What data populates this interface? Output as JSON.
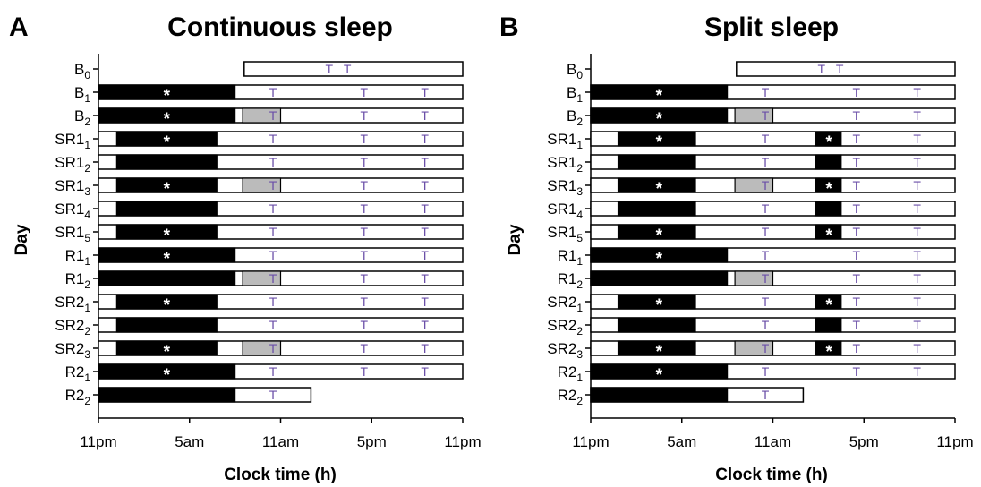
{
  "colors": {
    "sleep": "#000000",
    "nap": "#bbbbbb",
    "wake": "#ffffff",
    "test_marker": "#6b4fa8",
    "star": "#ffffff"
  },
  "axis": {
    "x_tick_labels": [
      "11pm",
      "5am",
      "11am",
      "5pm",
      "11pm"
    ],
    "x_tick_hours": [
      0,
      6,
      12,
      18,
      24
    ],
    "xlabel": "Clock time (h)",
    "ylabel": "Day"
  },
  "marker_glyphs": {
    "test": "T",
    "star": "*"
  },
  "panels": [
    {
      "letter": "A",
      "title": "Continuous sleep",
      "days": [
        {
          "base": "B",
          "sub": "0",
          "bar_start_h": 9.6,
          "bar_end_h": 24,
          "sleep": [],
          "nap": [],
          "stars": [],
          "tests": [
            15.2,
            16.4
          ]
        },
        {
          "base": "B",
          "sub": "1",
          "bar_start_h": 0,
          "bar_end_h": 24,
          "sleep": [
            [
              0,
              9
            ]
          ],
          "nap": [],
          "stars": [
            4.5
          ],
          "tests": [
            11.5,
            17.5,
            21.5
          ]
        },
        {
          "base": "B",
          "sub": "2",
          "bar_start_h": 0,
          "bar_end_h": 24,
          "sleep": [
            [
              0,
              9
            ]
          ],
          "nap": [
            [
              9.5,
              12
            ]
          ],
          "stars": [
            4.5
          ],
          "tests": [
            11.5,
            17.5,
            21.5
          ]
        },
        {
          "base": "SR1",
          "sub": "1",
          "bar_start_h": 0,
          "bar_end_h": 24,
          "sleep": [
            [
              1.2,
              7.8
            ]
          ],
          "nap": [],
          "stars": [
            4.5
          ],
          "tests": [
            11.5,
            17.5,
            21.5
          ]
        },
        {
          "base": "SR1",
          "sub": "2",
          "bar_start_h": 0,
          "bar_end_h": 24,
          "sleep": [
            [
              1.2,
              7.8
            ]
          ],
          "nap": [],
          "stars": [],
          "tests": [
            11.5,
            17.5,
            21.5
          ]
        },
        {
          "base": "SR1",
          "sub": "3",
          "bar_start_h": 0,
          "bar_end_h": 24,
          "sleep": [
            [
              1.2,
              7.8
            ]
          ],
          "nap": [
            [
              9.5,
              12
            ]
          ],
          "stars": [
            4.5
          ],
          "tests": [
            11.5,
            17.5,
            21.5
          ]
        },
        {
          "base": "SR1",
          "sub": "4",
          "bar_start_h": 0,
          "bar_end_h": 24,
          "sleep": [
            [
              1.2,
              7.8
            ]
          ],
          "nap": [],
          "stars": [],
          "tests": [
            11.5,
            17.5,
            21.5
          ]
        },
        {
          "base": "SR1",
          "sub": "5",
          "bar_start_h": 0,
          "bar_end_h": 24,
          "sleep": [
            [
              1.2,
              7.8
            ]
          ],
          "nap": [],
          "stars": [
            4.5
          ],
          "tests": [
            11.5,
            17.5,
            21.5
          ]
        },
        {
          "base": "R1",
          "sub": "1",
          "bar_start_h": 0,
          "bar_end_h": 24,
          "sleep": [
            [
              0,
              9
            ]
          ],
          "nap": [],
          "stars": [
            4.5
          ],
          "tests": [
            11.5,
            17.5,
            21.5
          ]
        },
        {
          "base": "R1",
          "sub": "2",
          "bar_start_h": 0,
          "bar_end_h": 24,
          "sleep": [
            [
              0,
              9
            ]
          ],
          "nap": [
            [
              9.5,
              12
            ]
          ],
          "stars": [],
          "tests": [
            11.5,
            17.5,
            21.5
          ]
        },
        {
          "base": "SR2",
          "sub": "1",
          "bar_start_h": 0,
          "bar_end_h": 24,
          "sleep": [
            [
              1.2,
              7.8
            ]
          ],
          "nap": [],
          "stars": [
            4.5
          ],
          "tests": [
            11.5,
            17.5,
            21.5
          ]
        },
        {
          "base": "SR2",
          "sub": "2",
          "bar_start_h": 0,
          "bar_end_h": 24,
          "sleep": [
            [
              1.2,
              7.8
            ]
          ],
          "nap": [],
          "stars": [],
          "tests": [
            11.5,
            17.5,
            21.5
          ]
        },
        {
          "base": "SR2",
          "sub": "3",
          "bar_start_h": 0,
          "bar_end_h": 24,
          "sleep": [
            [
              1.2,
              7.8
            ]
          ],
          "nap": [
            [
              9.5,
              12
            ]
          ],
          "stars": [
            4.5
          ],
          "tests": [
            11.5,
            17.5,
            21.5
          ]
        },
        {
          "base": "R2",
          "sub": "1",
          "bar_start_h": 0,
          "bar_end_h": 24,
          "sleep": [
            [
              0,
              9
            ]
          ],
          "nap": [],
          "stars": [
            4.5
          ],
          "tests": [
            11.5,
            17.5,
            21.5
          ]
        },
        {
          "base": "R2",
          "sub": "2",
          "bar_start_h": 0,
          "bar_end_h": 14,
          "sleep": [
            [
              0,
              9
            ]
          ],
          "nap": [],
          "stars": [],
          "tests": [
            11.5
          ]
        }
      ]
    },
    {
      "letter": "B",
      "title": "Split sleep",
      "days": [
        {
          "base": "B",
          "sub": "0",
          "bar_start_h": 9.6,
          "bar_end_h": 24,
          "sleep": [],
          "nap": [],
          "stars": [],
          "tests": [
            15.2,
            16.4
          ]
        },
        {
          "base": "B",
          "sub": "1",
          "bar_start_h": 0,
          "bar_end_h": 24,
          "sleep": [
            [
              0,
              9
            ]
          ],
          "nap": [],
          "stars": [
            4.5
          ],
          "tests": [
            11.5,
            17.5,
            21.5
          ]
        },
        {
          "base": "B",
          "sub": "2",
          "bar_start_h": 0,
          "bar_end_h": 24,
          "sleep": [
            [
              0,
              9
            ]
          ],
          "nap": [
            [
              9.5,
              12
            ]
          ],
          "stars": [
            4.5
          ],
          "tests": [
            11.5,
            17.5,
            21.5
          ]
        },
        {
          "base": "SR1",
          "sub": "1",
          "bar_start_h": 0,
          "bar_end_h": 24,
          "sleep": [
            [
              1.8,
              6.9
            ],
            [
              14.8,
              16.5
            ]
          ],
          "nap": [],
          "stars": [
            4.5,
            15.7
          ],
          "tests": [
            11.5,
            17.5,
            21.5
          ]
        },
        {
          "base": "SR1",
          "sub": "2",
          "bar_start_h": 0,
          "bar_end_h": 24,
          "sleep": [
            [
              1.8,
              6.9
            ],
            [
              14.8,
              16.5
            ]
          ],
          "nap": [],
          "stars": [],
          "tests": [
            11.5,
            17.5,
            21.5
          ]
        },
        {
          "base": "SR1",
          "sub": "3",
          "bar_start_h": 0,
          "bar_end_h": 24,
          "sleep": [
            [
              1.8,
              6.9
            ],
            [
              14.8,
              16.5
            ]
          ],
          "nap": [
            [
              9.5,
              12
            ]
          ],
          "stars": [
            4.5,
            15.7
          ],
          "tests": [
            11.5,
            17.5,
            21.5
          ]
        },
        {
          "base": "SR1",
          "sub": "4",
          "bar_start_h": 0,
          "bar_end_h": 24,
          "sleep": [
            [
              1.8,
              6.9
            ],
            [
              14.8,
              16.5
            ]
          ],
          "nap": [],
          "stars": [],
          "tests": [
            11.5,
            17.5,
            21.5
          ]
        },
        {
          "base": "SR1",
          "sub": "5",
          "bar_start_h": 0,
          "bar_end_h": 24,
          "sleep": [
            [
              1.8,
              6.9
            ],
            [
              14.8,
              16.5
            ]
          ],
          "nap": [],
          "stars": [
            4.5,
            15.7
          ],
          "tests": [
            11.5,
            17.5,
            21.5
          ]
        },
        {
          "base": "R1",
          "sub": "1",
          "bar_start_h": 0,
          "bar_end_h": 24,
          "sleep": [
            [
              0,
              9
            ]
          ],
          "nap": [],
          "stars": [
            4.5
          ],
          "tests": [
            11.5,
            17.5,
            21.5
          ]
        },
        {
          "base": "R1",
          "sub": "2",
          "bar_start_h": 0,
          "bar_end_h": 24,
          "sleep": [
            [
              0,
              9
            ]
          ],
          "nap": [
            [
              9.5,
              12
            ]
          ],
          "stars": [],
          "tests": [
            11.5,
            17.5,
            21.5
          ]
        },
        {
          "base": "SR2",
          "sub": "1",
          "bar_start_h": 0,
          "bar_end_h": 24,
          "sleep": [
            [
              1.8,
              6.9
            ],
            [
              14.8,
              16.5
            ]
          ],
          "nap": [],
          "stars": [
            4.5,
            15.7
          ],
          "tests": [
            11.5,
            17.5,
            21.5
          ]
        },
        {
          "base": "SR2",
          "sub": "2",
          "bar_start_h": 0,
          "bar_end_h": 24,
          "sleep": [
            [
              1.8,
              6.9
            ],
            [
              14.8,
              16.5
            ]
          ],
          "nap": [],
          "stars": [],
          "tests": [
            11.5,
            17.5,
            21.5
          ]
        },
        {
          "base": "SR2",
          "sub": "3",
          "bar_start_h": 0,
          "bar_end_h": 24,
          "sleep": [
            [
              1.8,
              6.9
            ],
            [
              14.8,
              16.5
            ]
          ],
          "nap": [
            [
              9.5,
              12
            ]
          ],
          "stars": [
            4.5,
            15.7
          ],
          "tests": [
            11.5,
            17.5,
            21.5
          ]
        },
        {
          "base": "R2",
          "sub": "1",
          "bar_start_h": 0,
          "bar_end_h": 24,
          "sleep": [
            [
              0,
              9
            ]
          ],
          "nap": [],
          "stars": [
            4.5
          ],
          "tests": [
            11.5,
            17.5,
            21.5
          ]
        },
        {
          "base": "R2",
          "sub": "2",
          "bar_start_h": 0,
          "bar_end_h": 14,
          "sleep": [
            [
              0,
              9
            ]
          ],
          "nap": [],
          "stars": [],
          "tests": [
            11.5
          ]
        }
      ]
    }
  ]
}
